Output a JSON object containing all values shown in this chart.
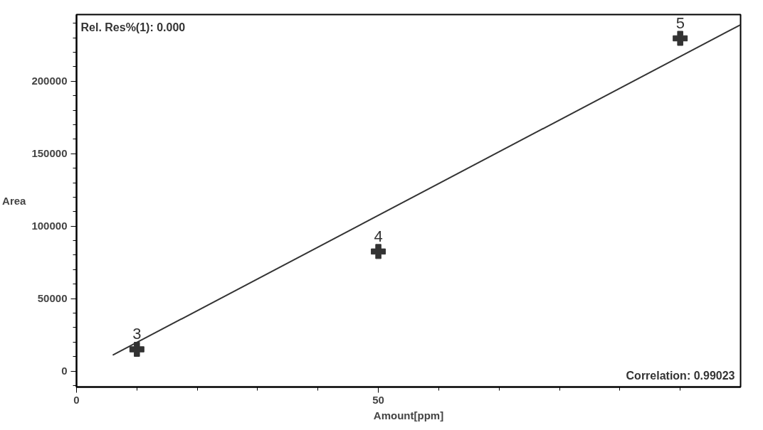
{
  "chart_data": {
    "type": "scatter",
    "xlabel": "Amount[ppm]",
    "ylabel": "Area",
    "xlim": [
      0,
      110
    ],
    "ylim": [
      -11000,
      246000
    ],
    "xticks": [
      0,
      {
        "value": 10,
        "label": null
      },
      {
        "value": 20,
        "label": null
      },
      {
        "value": 30,
        "label": null
      },
      {
        "value": 40,
        "label": null
      },
      50,
      {
        "value": 60,
        "label": null
      },
      {
        "value": 70,
        "label": null
      },
      {
        "value": 80,
        "label": null
      },
      {
        "value": 90,
        "label": null
      },
      {
        "value": 100,
        "label": null
      }
    ],
    "yticks": [
      {
        "value": -10000,
        "label": null
      },
      0,
      {
        "value": 10000,
        "label": null
      },
      {
        "value": 20000,
        "label": null
      },
      {
        "value": 30000,
        "label": null
      },
      {
        "value": 40000,
        "label": null
      },
      50000,
      {
        "value": 60000,
        "label": null
      },
      {
        "value": 70000,
        "label": null
      },
      {
        "value": 80000,
        "label": null
      },
      {
        "value": 90000,
        "label": null
      },
      100000,
      {
        "value": 110000,
        "label": null
      },
      {
        "value": 120000,
        "label": null
      },
      {
        "value": 130000,
        "label": null
      },
      {
        "value": 140000,
        "label": null
      },
      150000,
      {
        "value": 160000,
        "label": null
      },
      {
        "value": 170000,
        "label": null
      },
      {
        "value": 180000,
        "label": null
      },
      {
        "value": 190000,
        "label": null
      },
      200000,
      {
        "value": 210000,
        "label": null
      },
      {
        "value": 220000,
        "label": null
      },
      {
        "value": 230000,
        "label": null
      },
      {
        "value": 240000,
        "label": null
      }
    ],
    "series": [
      {
        "color": "#333333",
        "marker": "cross",
        "x": [
          10,
          50,
          100
        ],
        "values": [
          15000,
          82500,
          229600
        ]
      },
      {
        "type": "line",
        "color": "#333333",
        "x": [
          6,
          110
        ],
        "values": [
          11000,
          239000
        ]
      }
    ],
    "grid": false,
    "annotations": [
      "Rel. Res%(1): 0.000",
      "Correlation: 0.99023",
      {
        "text": "3",
        "x": 10,
        "y": 15000
      },
      {
        "text": "4",
        "x": 50,
        "y": 82500
      },
      {
        "text": "5",
        "x": 100,
        "y": 229600
      }
    ]
  }
}
